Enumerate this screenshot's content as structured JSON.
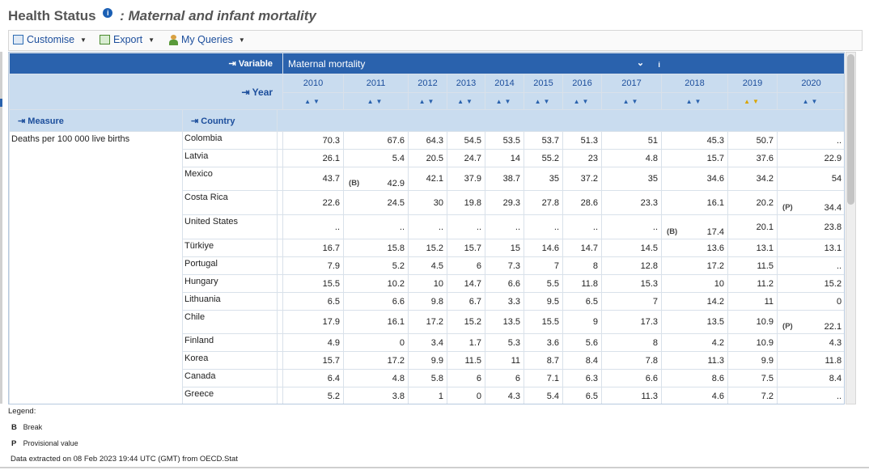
{
  "header": {
    "title": "Health Status",
    "info_icon": "i",
    "subtitle": ": Maternal and infant mortality"
  },
  "toolbar": {
    "customise": "Customise",
    "export": "Export",
    "my_queries": "My Queries"
  },
  "grid": {
    "variable_label": "Variable",
    "variable_value": "Maternal mortality",
    "year_label": "Year",
    "measure_label": "Measure",
    "country_label": "Country",
    "years": [
      "2010",
      "2011",
      "2012",
      "2013",
      "2014",
      "2015",
      "2016",
      "2017",
      "2018",
      "2019",
      "2020"
    ],
    "measure": "Deaths per 100 000 live births",
    "rows": [
      {
        "country": "Colombia",
        "values": [
          "70.3",
          "67.6",
          "64.3",
          "54.5",
          "53.5",
          "53.7",
          "51.3",
          "51",
          "45.3",
          "50.7",
          ".."
        ]
      },
      {
        "country": "Latvia",
        "values": [
          "26.1",
          "5.4",
          "20.5",
          "24.7",
          "14",
          "55.2",
          "23",
          "4.8",
          "15.7",
          "37.6",
          "22.9"
        ]
      },
      {
        "country": "Mexico",
        "values": [
          "43.7",
          "42.9",
          "42.1",
          "37.9",
          "38.7",
          "35",
          "37.2",
          "35",
          "34.6",
          "34.2",
          "54"
        ],
        "flags": {
          "1": "(B)"
        }
      },
      {
        "country": "Costa Rica",
        "values": [
          "22.6",
          "24.5",
          "30",
          "19.8",
          "29.3",
          "27.8",
          "28.6",
          "23.3",
          "16.1",
          "20.2",
          "34.4"
        ],
        "flags": {
          "10": "(P)"
        }
      },
      {
        "country": "United States",
        "values": [
          "..",
          "..",
          "..",
          "..",
          "..",
          "..",
          "..",
          "..",
          "17.4",
          "20.1",
          "23.8"
        ],
        "flags": {
          "8": "(B)"
        }
      },
      {
        "country": "Türkiye",
        "values": [
          "16.7",
          "15.8",
          "15.2",
          "15.7",
          "15",
          "14.6",
          "14.7",
          "14.5",
          "13.6",
          "13.1",
          "13.1"
        ]
      },
      {
        "country": "Portugal",
        "values": [
          "7.9",
          "5.2",
          "4.5",
          "6",
          "7.3",
          "7",
          "8",
          "12.8",
          "17.2",
          "11.5",
          ".."
        ]
      },
      {
        "country": "Hungary",
        "values": [
          "15.5",
          "10.2",
          "10",
          "14.7",
          "6.6",
          "5.5",
          "11.8",
          "15.3",
          "10",
          "11.2",
          "15.2"
        ]
      },
      {
        "country": "Lithuania",
        "values": [
          "6.5",
          "6.6",
          "9.8",
          "6.7",
          "3.3",
          "9.5",
          "6.5",
          "7",
          "14.2",
          "11",
          "0"
        ]
      },
      {
        "country": "Chile",
        "values": [
          "17.9",
          "16.1",
          "17.2",
          "15.2",
          "13.5",
          "15.5",
          "9",
          "17.3",
          "13.5",
          "10.9",
          "22.1"
        ],
        "flags": {
          "10": "(P)"
        }
      },
      {
        "country": "Finland",
        "values": [
          "4.9",
          "0",
          "3.4",
          "1.7",
          "5.3",
          "3.6",
          "5.6",
          "8",
          "4.2",
          "10.9",
          "4.3"
        ]
      },
      {
        "country": "Korea",
        "values": [
          "15.7",
          "17.2",
          "9.9",
          "11.5",
          "11",
          "8.7",
          "8.4",
          "7.8",
          "11.3",
          "9.9",
          "11.8"
        ]
      },
      {
        "country": "Canada",
        "values": [
          "6.4",
          "4.8",
          "5.8",
          "6",
          "6",
          "7.1",
          "6.3",
          "6.6",
          "8.6",
          "7.5",
          "8.4"
        ]
      },
      {
        "country": "Greece",
        "values": [
          "5.2",
          "3.8",
          "1",
          "0",
          "4.3",
          "5.4",
          "6.5",
          "11.3",
          "4.6",
          "7.2",
          ".."
        ]
      }
    ]
  },
  "legend": {
    "title": "Legend:",
    "items": [
      {
        "key": "B",
        "text": "Break"
      },
      {
        "key": "P",
        "text": "Provisional value"
      }
    ]
  },
  "footer": {
    "text": "Data extracted on 08 Feb 2023 19:44 UTC (GMT) from OECD.Stat"
  }
}
